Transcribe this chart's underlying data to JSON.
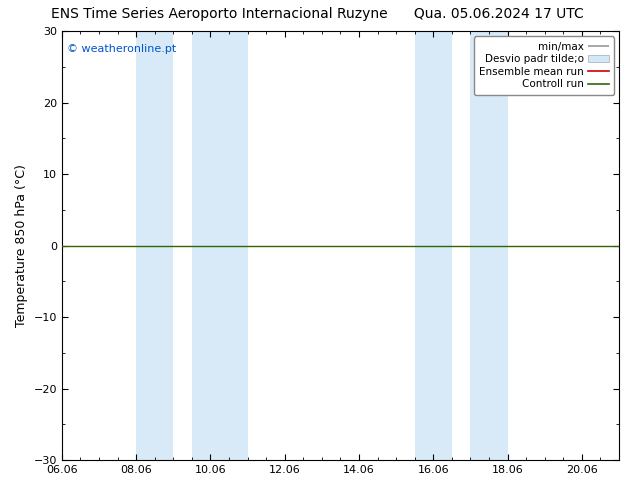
{
  "title_left": "ENS Time Series Aeroporto Internacional Ruzyne",
  "title_right": "Qua. 05.06.2024 17 UTC",
  "ylabel": "Temperature 850 hPa (°C)",
  "copyright_text": "© weatheronline.pt",
  "copyright_color": "#0055cc",
  "xlim_start": 0,
  "xlim_end": 15.0,
  "ylim": [
    -30,
    30
  ],
  "yticks": [
    -30,
    -20,
    -10,
    0,
    10,
    20,
    30
  ],
  "xtick_labels": [
    "06.06",
    "08.06",
    "10.06",
    "12.06",
    "14.06",
    "16.06",
    "18.06",
    "20.06"
  ],
  "xtick_positions": [
    0.0,
    2.0,
    4.0,
    6.0,
    8.0,
    10.0,
    12.0,
    14.0
  ],
  "background_color": "#ffffff",
  "plot_bg_color": "#ffffff",
  "shade_color": "#d8eaf8",
  "shade_regions": [
    [
      2.0,
      3.0
    ],
    [
      3.5,
      5.0
    ],
    [
      10.0,
      11.0
    ],
    [
      11.5,
      12.5
    ]
  ],
  "control_run_color": "#336600",
  "ensemble_mean_color": "#cc0000",
  "minmax_color": "#999999",
  "stddev_color": "#d0e8f8",
  "legend_labels": [
    "min/max",
    "Desvio padr tilde;o",
    "Ensemble mean run",
    "Controll run"
  ],
  "legend_line_colors": [
    "#999999",
    "#d0e8f8",
    "#cc0000",
    "#336600"
  ],
  "title_fontsize": 10,
  "axis_label_fontsize": 9,
  "tick_fontsize": 8,
  "legend_fontsize": 7.5,
  "copyright_fontsize": 8
}
